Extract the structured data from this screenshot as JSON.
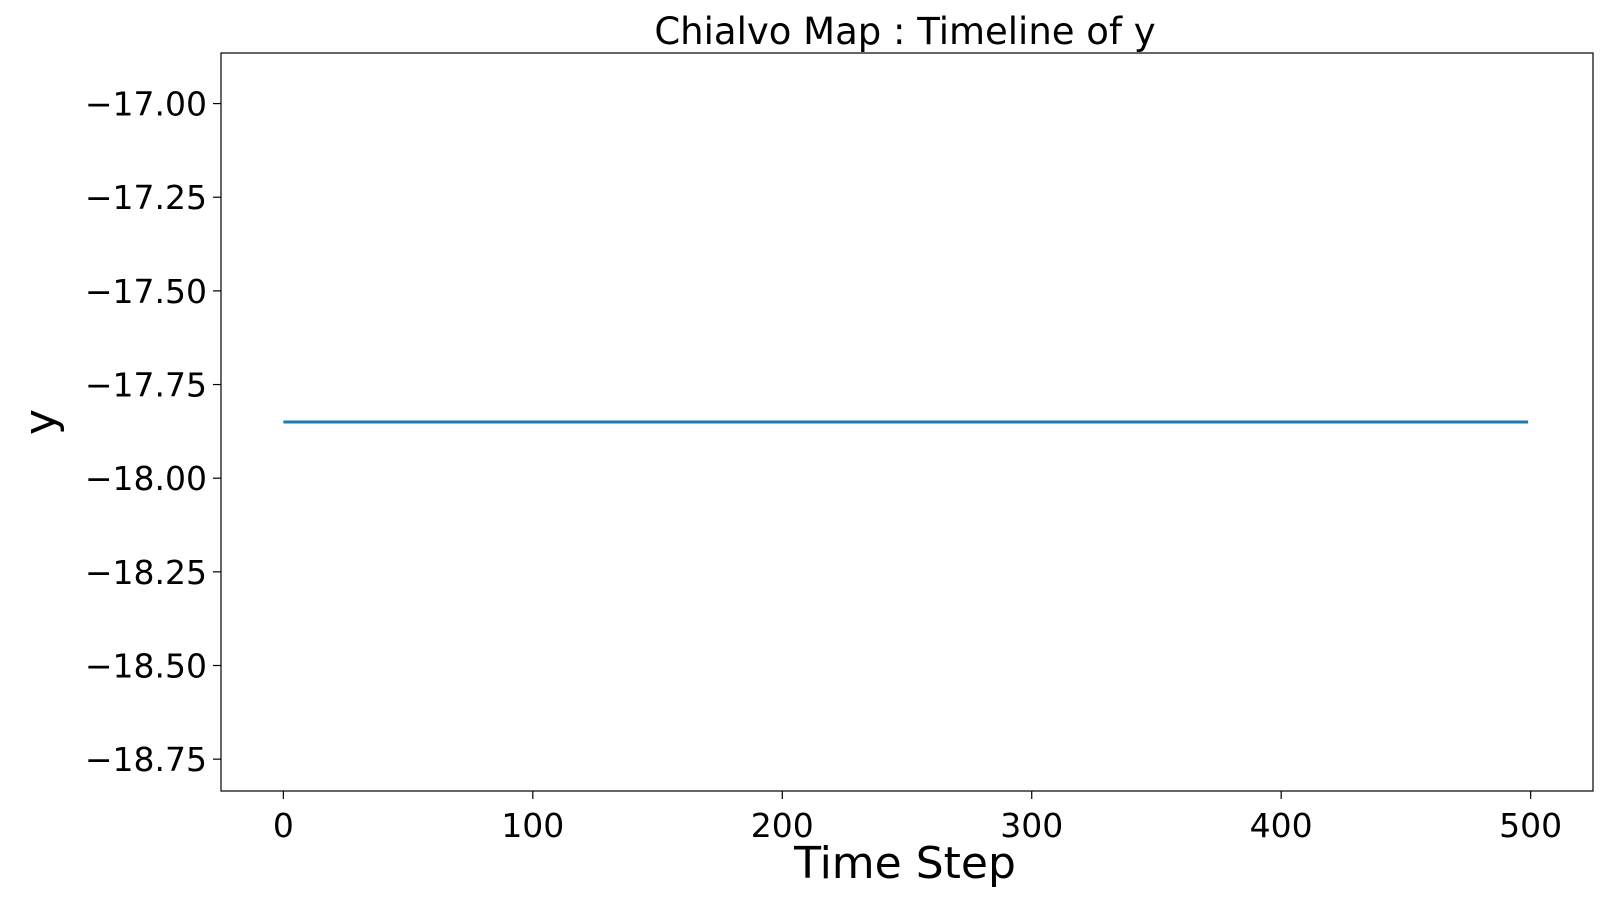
{
  "chart_data": {
    "type": "line",
    "title": "Chialvo Map : Timeline of y",
    "xlabel": "Time Step",
    "ylabel": "y",
    "xlim": [
      -25,
      525
    ],
    "ylim": [
      -18.835,
      -16.865
    ],
    "xticks": [
      0,
      100,
      200,
      300,
      400,
      500
    ],
    "xtick_labels": [
      "0",
      "100",
      "200",
      "300",
      "400",
      "500"
    ],
    "yticks": [
      -17.0,
      -17.25,
      -17.5,
      -17.75,
      -18.0,
      -18.25,
      -18.5,
      -18.75
    ],
    "ytick_labels": [
      "−17.00",
      "−17.25",
      "−17.50",
      "−17.75",
      "−18.00",
      "−18.25",
      "−18.50",
      "−18.75"
    ],
    "grid": false,
    "series": [
      {
        "x": [
          0,
          499
        ],
        "y": [
          -17.85,
          -17.85
        ],
        "color": "#1f77b4"
      }
    ]
  }
}
